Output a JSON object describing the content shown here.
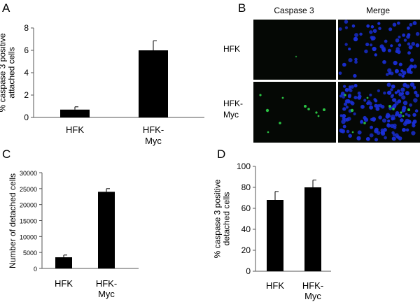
{
  "panels": {
    "A": {
      "letter": "A"
    },
    "B": {
      "letter": "B",
      "column_headers": [
        "Caspase 3",
        "Merge"
      ],
      "row_labels": [
        {
          "line1": "HFK",
          "line2": ""
        },
        {
          "line1": "HFK-",
          "line2": "Myc"
        }
      ]
    },
    "C": {
      "letter": "C"
    },
    "D": {
      "letter": "D"
    }
  },
  "colors": {
    "bar": "#000000",
    "axis": "#555555",
    "micro_background": "#050805",
    "nuclei": "#1a2fd8",
    "caspase_signal": "#2fd84a"
  },
  "chart_data": [
    {
      "id": "A",
      "type": "bar",
      "categories": [
        {
          "line1": "HFK",
          "line2": ""
        },
        {
          "line1": "HFK-",
          "line2": "Myc"
        }
      ],
      "values": [
        0.7,
        6.0
      ],
      "errors": [
        0.25,
        0.85
      ],
      "title": "",
      "xlabel": "",
      "ylabel": [
        "% caspase 3 positive",
        "attached cells"
      ],
      "ylim": [
        0,
        8
      ],
      "yticks": [
        "0",
        "2",
        "4",
        "6",
        "8"
      ],
      "grid": false
    },
    {
      "id": "C",
      "type": "bar",
      "categories": [
        {
          "line1": "HFK",
          "line2": ""
        },
        {
          "line1": "HFK-",
          "line2": "Myc"
        }
      ],
      "values": [
        3500,
        24000
      ],
      "errors": [
        700,
        1000
      ],
      "title": "",
      "xlabel": "",
      "ylabel": [
        "Number of detached cells"
      ],
      "ylim": [
        0,
        30000
      ],
      "yticks": [
        "0",
        "5000",
        "10000",
        "15000",
        "20000",
        "25000",
        "30000"
      ],
      "grid": false
    },
    {
      "id": "D",
      "type": "bar",
      "categories": [
        {
          "line1": "HFK",
          "line2": ""
        },
        {
          "line1": "HFK-",
          "line2": "Myc"
        }
      ],
      "values": [
        68,
        80
      ],
      "errors": [
        8,
        7
      ],
      "title": "",
      "xlabel": "",
      "ylabel": [
        "% caspase 3 positive",
        "detached cells"
      ],
      "ylim": [
        0,
        100
      ],
      "yticks": [
        "0",
        "20",
        "40",
        "60",
        "80",
        "100"
      ],
      "grid": false
    }
  ]
}
